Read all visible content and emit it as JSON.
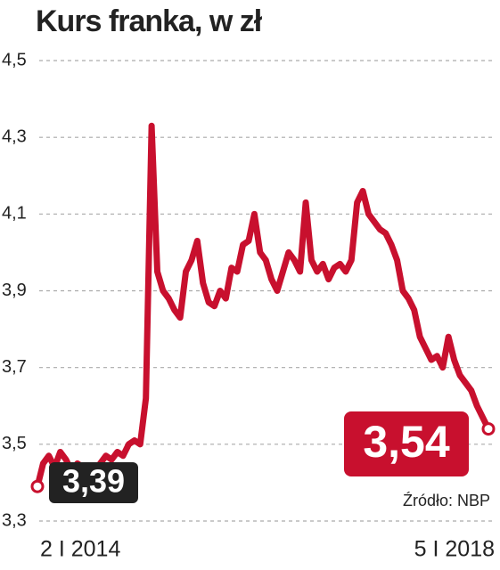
{
  "chart_data": {
    "type": "line",
    "title": "Kurs franka, w zł",
    "categories": [
      "2 I 2014",
      null,
      null,
      null,
      null,
      null,
      null,
      null,
      null,
      null,
      null,
      null,
      null,
      null,
      null,
      null,
      null,
      null,
      null,
      null,
      null,
      null,
      null,
      null,
      null,
      null,
      null,
      null,
      null,
      null,
      null,
      null,
      null,
      null,
      null,
      null,
      null,
      null,
      null,
      null,
      null,
      null,
      null,
      null,
      null,
      null,
      null,
      null,
      null,
      null,
      null,
      null,
      null,
      null,
      null,
      null,
      null,
      null,
      null,
      null,
      null,
      null,
      null,
      null,
      null,
      null,
      null,
      null,
      null,
      null,
      null,
      null,
      null,
      null,
      null,
      null,
      null,
      null,
      null,
      "5 I 2018"
    ],
    "series": [
      {
        "color": "#c8102e",
        "values": [
          3.39,
          3.45,
          3.47,
          3.44,
          3.48,
          3.46,
          3.43,
          3.45,
          3.44,
          3.42,
          3.43,
          3.45,
          3.47,
          3.46,
          3.48,
          3.47,
          3.5,
          3.51,
          3.5,
          3.62,
          4.33,
          3.95,
          3.9,
          3.88,
          3.85,
          3.83,
          3.95,
          3.98,
          4.03,
          3.92,
          3.87,
          3.86,
          3.9,
          3.88,
          3.96,
          3.95,
          4.02,
          4.03,
          4.1,
          4.0,
          3.98,
          3.93,
          3.9,
          3.95,
          4.0,
          3.98,
          3.95,
          4.13,
          3.98,
          3.95,
          3.97,
          3.93,
          3.96,
          3.97,
          3.95,
          3.98,
          4.13,
          4.16,
          4.1,
          4.08,
          4.06,
          4.05,
          4.02,
          3.98,
          3.9,
          3.88,
          3.85,
          3.78,
          3.75,
          3.72,
          3.73,
          3.7,
          3.78,
          3.72,
          3.68,
          3.66,
          3.64,
          3.6,
          3.57,
          3.54
        ],
        "value_labels": [
          "3,39",
          null,
          null,
          null,
          null,
          null,
          null,
          null,
          null,
          null,
          null,
          null,
          null,
          null,
          null,
          null,
          null,
          null,
          null,
          null,
          null,
          null,
          null,
          null,
          null,
          null,
          null,
          null,
          null,
          null,
          null,
          null,
          null,
          null,
          null,
          null,
          null,
          null,
          null,
          null,
          null,
          null,
          null,
          null,
          null,
          null,
          null,
          null,
          null,
          null,
          null,
          null,
          null,
          null,
          null,
          null,
          null,
          null,
          null,
          null,
          null,
          null,
          null,
          null,
          null,
          null,
          null,
          null,
          null,
          null,
          null,
          null,
          null,
          null,
          null,
          null,
          null,
          null,
          null,
          "3,54"
        ]
      }
    ],
    "ylim": [
      3.3,
      4.5
    ],
    "yticks": [
      {
        "value": 3.3,
        "label": "3,3"
      },
      {
        "value": 3.5,
        "label": "3,5"
      },
      {
        "value": 3.7,
        "label": "3,7"
      },
      {
        "value": 3.9,
        "label": "3,9"
      },
      {
        "value": 4.1,
        "label": "4,1"
      },
      {
        "value": 4.3,
        "label": "4,3"
      },
      {
        "value": 4.5,
        "label": "4,5"
      }
    ],
    "grid": true,
    "source": "Źródło: NBP"
  }
}
